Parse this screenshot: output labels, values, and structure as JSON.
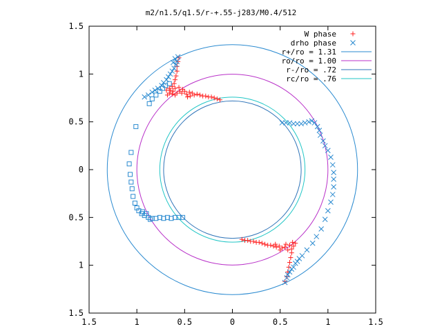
{
  "chart_data": {
    "type": "scatter",
    "title": "m2/n1.5/q1.5/r-+.55-j283/M0.4/512",
    "xlabel": "",
    "ylabel": "",
    "xlim": [
      -1.5,
      1.5
    ],
    "ylim": [
      -1.5,
      1.5
    ],
    "grid": false,
    "legend_position": "top-right",
    "x_ticks": [
      {
        "value": -1.5,
        "label": "1.5"
      },
      {
        "value": -1.0,
        "label": "1"
      },
      {
        "value": -0.5,
        "label": "0.5"
      },
      {
        "value": 0,
        "label": "0"
      },
      {
        "value": 0.5,
        "label": "0.5"
      },
      {
        "value": 1.0,
        "label": "1"
      },
      {
        "value": 1.5,
        "label": "1.5"
      }
    ],
    "y_ticks": [
      {
        "value": 1.5,
        "label": "1.5"
      },
      {
        "value": 1.0,
        "label": "1"
      },
      {
        "value": 0.5,
        "label": "0.5"
      },
      {
        "value": 0,
        "label": "0"
      },
      {
        "value": -0.5,
        "label": "0.5"
      },
      {
        "value": -1.0,
        "label": "1"
      },
      {
        "value": -1.5,
        "label": "1.5"
      }
    ],
    "circles": [
      {
        "name": "r+/ro = 1.31",
        "radius": 1.31,
        "color": "#2a8ad0"
      },
      {
        "name": "ro/ro = 1.00",
        "radius": 1.0,
        "color": "#b82fc8"
      },
      {
        "name": "r-/ro = .72",
        "radius": 0.72,
        "color": "#2d73b8"
      },
      {
        "name": "rc/ro = .76",
        "radius": 0.76,
        "color": "#21c6c6"
      }
    ],
    "series": [
      {
        "name": "W phase",
        "marker": "plus",
        "color": "#ff2020",
        "points": [
          [
            -0.56,
            1.17
          ],
          [
            -0.57,
            1.13
          ],
          [
            -0.58,
            1.08
          ],
          [
            -0.58,
            1.03
          ],
          [
            -0.59,
            0.98
          ],
          [
            -0.6,
            0.94
          ],
          [
            -0.61,
            0.9
          ],
          [
            -0.63,
            0.87
          ],
          [
            -0.66,
            0.85
          ],
          [
            -0.69,
            0.83
          ],
          [
            -0.66,
            0.8
          ],
          [
            -0.68,
            0.78
          ],
          [
            -0.62,
            0.82
          ],
          [
            -0.6,
            0.85
          ],
          [
            -0.63,
            0.79
          ],
          [
            -0.58,
            0.8
          ],
          [
            -0.55,
            0.82
          ],
          [
            -0.53,
            0.8
          ],
          [
            -0.5,
            0.82
          ],
          [
            -0.48,
            0.79
          ],
          [
            -0.45,
            0.81
          ],
          [
            -0.42,
            0.8
          ],
          [
            -0.4,
            0.78
          ],
          [
            -0.37,
            0.79
          ],
          [
            -0.34,
            0.78
          ],
          [
            -0.31,
            0.77
          ],
          [
            -0.28,
            0.77
          ],
          [
            -0.25,
            0.76
          ],
          [
            -0.22,
            0.76
          ],
          [
            -0.19,
            0.75
          ],
          [
            -0.16,
            0.74
          ],
          [
            -0.13,
            0.73
          ],
          [
            -0.65,
            0.83
          ],
          [
            -0.6,
            0.78
          ],
          [
            -0.56,
            0.86
          ],
          [
            -0.52,
            0.84
          ],
          [
            -0.47,
            0.76
          ],
          [
            -0.44,
            0.77
          ],
          [
            0.1,
            -0.73
          ],
          [
            0.13,
            -0.74
          ],
          [
            0.16,
            -0.74
          ],
          [
            0.19,
            -0.75
          ],
          [
            0.22,
            -0.75
          ],
          [
            0.25,
            -0.76
          ],
          [
            0.28,
            -0.76
          ],
          [
            0.31,
            -0.77
          ],
          [
            0.34,
            -0.78
          ],
          [
            0.37,
            -0.79
          ],
          [
            0.4,
            -0.79
          ],
          [
            0.43,
            -0.8
          ],
          [
            0.46,
            -0.81
          ],
          [
            0.49,
            -0.8
          ],
          [
            0.52,
            -0.82
          ],
          [
            0.55,
            -0.81
          ],
          [
            0.58,
            -0.84
          ],
          [
            0.6,
            -0.79
          ],
          [
            0.62,
            -0.83
          ],
          [
            0.64,
            -0.8
          ],
          [
            0.66,
            -0.77
          ],
          [
            0.62,
            -0.87
          ],
          [
            0.61,
            -0.92
          ],
          [
            0.6,
            -0.97
          ],
          [
            0.59,
            -1.02
          ],
          [
            0.58,
            -1.07
          ],
          [
            0.57,
            -1.12
          ],
          [
            0.55,
            -1.17
          ],
          [
            0.45,
            -0.78
          ],
          [
            0.5,
            -0.84
          ],
          [
            0.56,
            -0.78
          ],
          [
            0.63,
            -0.76
          ]
        ]
      },
      {
        "name": "drho phase",
        "marker": "cross",
        "color": "#2a8ad0",
        "points": [
          [
            -0.57,
            1.18
          ],
          [
            -0.58,
            1.13
          ],
          [
            -0.59,
            1.1
          ],
          [
            -0.61,
            1.06
          ],
          [
            -0.63,
            1.03
          ],
          [
            -0.65,
            1.0
          ],
          [
            -0.67,
            0.97
          ],
          [
            -0.69,
            0.94
          ],
          [
            -0.72,
            0.91
          ],
          [
            -0.74,
            0.88
          ],
          [
            -0.78,
            0.85
          ],
          [
            -0.81,
            0.83
          ],
          [
            -0.84,
            0.81
          ],
          [
            -0.88,
            0.78
          ],
          [
            -0.92,
            0.76
          ],
          [
            -0.6,
            1.16
          ],
          [
            -0.62,
            1.12
          ],
          [
            0.52,
            0.49
          ],
          [
            0.56,
            0.49
          ],
          [
            0.6,
            0.49
          ],
          [
            0.64,
            0.48
          ],
          [
            0.68,
            0.48
          ],
          [
            0.72,
            0.48
          ],
          [
            0.76,
            0.49
          ],
          [
            0.8,
            0.5
          ],
          [
            0.83,
            0.51
          ],
          [
            0.86,
            0.49
          ],
          [
            0.89,
            0.45
          ],
          [
            0.91,
            0.41
          ],
          [
            0.92,
            0.36
          ],
          [
            0.95,
            0.3
          ],
          [
            0.97,
            0.25
          ],
          [
            1.0,
            0.2
          ],
          [
            1.03,
            0.13
          ],
          [
            1.05,
            0.05
          ],
          [
            1.06,
            -0.03
          ],
          [
            1.06,
            -0.1
          ],
          [
            1.06,
            -0.18
          ],
          [
            1.05,
            -0.26
          ],
          [
            1.03,
            -0.34
          ],
          [
            1.0,
            -0.43
          ],
          [
            0.97,
            -0.52
          ],
          [
            0.93,
            -0.62
          ],
          [
            0.88,
            -0.7
          ],
          [
            0.84,
            -0.77
          ],
          [
            0.78,
            -0.84
          ],
          [
            0.73,
            -0.9
          ],
          [
            0.68,
            -0.96
          ],
          [
            0.64,
            -1.02
          ],
          [
            0.6,
            -1.07
          ],
          [
            0.57,
            -1.13
          ],
          [
            0.55,
            -1.18
          ],
          [
            0.58,
            -1.1
          ],
          [
            0.62,
            -1.04
          ],
          [
            0.66,
            -0.98
          ],
          [
            0.7,
            -0.93
          ]
        ]
      },
      {
        "name": "",
        "marker": "square",
        "color": "#2a8ad0",
        "points": [
          [
            -0.66,
            0.9
          ],
          [
            -0.7,
            0.88
          ],
          [
            -0.73,
            0.85
          ],
          [
            -0.76,
            0.82
          ],
          [
            -0.8,
            0.78
          ],
          [
            -0.84,
            0.74
          ],
          [
            -0.87,
            0.69
          ],
          [
            -1.01,
            0.45
          ],
          [
            -1.06,
            0.18
          ],
          [
            -1.08,
            0.06
          ],
          [
            -1.07,
            -0.05
          ],
          [
            -1.06,
            -0.13
          ],
          [
            -1.05,
            -0.2
          ],
          [
            -1.04,
            -0.28
          ],
          [
            -1.02,
            -0.35
          ],
          [
            -1.0,
            -0.4
          ],
          [
            -0.98,
            -0.43
          ],
          [
            -0.95,
            -0.46
          ],
          [
            -0.92,
            -0.48
          ],
          [
            -0.88,
            -0.5
          ],
          [
            -0.84,
            -0.51
          ],
          [
            -0.8,
            -0.51
          ],
          [
            -0.76,
            -0.5
          ],
          [
            -0.72,
            -0.51
          ],
          [
            -0.68,
            -0.5
          ],
          [
            -0.64,
            -0.51
          ],
          [
            -0.6,
            -0.5
          ],
          [
            -0.56,
            -0.5
          ],
          [
            -0.52,
            -0.5
          ],
          [
            -0.9,
            -0.46
          ],
          [
            -0.86,
            -0.52
          ],
          [
            -0.94,
            -0.44
          ]
        ]
      }
    ]
  }
}
